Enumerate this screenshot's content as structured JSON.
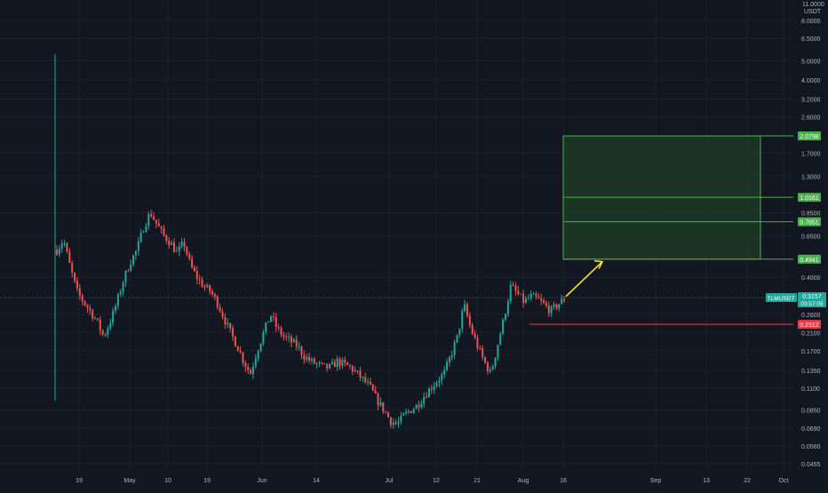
{
  "theme": {
    "background": "#131722",
    "grid": "#1e2230",
    "axis_text": "#b2b5be",
    "bull": "#26a69a",
    "bear": "#ef5350",
    "zone_fill": "#1f3a26",
    "zone_line": "#4caf50",
    "arrow": "#ffeb3b",
    "last_price_tag": "#26a69a",
    "stop_tag": "#f23645",
    "target_tag": "#4caf50"
  },
  "chart_data": {
    "type": "candlestick",
    "symbol": "TLMUSDT",
    "y_scale": "log",
    "ylabel": "USDT",
    "y_top_label": "11.0000",
    "y_tick_labels": [
      "8.0000",
      "6.5000",
      "5.0000",
      "4.0000",
      "3.2000",
      "2.6000",
      "1.7000",
      "1.3000",
      "0.8500",
      "0.6500",
      "0.4000",
      "0.2600",
      "0.2100",
      "0.1700",
      "0.1350",
      "0.1100",
      "0.0850",
      "0.0690",
      "0.0560",
      "0.0455"
    ],
    "x_tick_labels": [
      "19",
      "May",
      "10",
      "19",
      "Jun",
      "14",
      "Jul",
      "12",
      "21",
      "Aug",
      "16",
      "Sep",
      "13",
      "22",
      "Oct"
    ],
    "price_levels": [
      {
        "label": "2.0798",
        "value": 2.0798,
        "kind": "target"
      },
      {
        "label": "1.0161",
        "value": 1.0161,
        "kind": "target"
      },
      {
        "label": "0.7651",
        "value": 0.7651,
        "kind": "target"
      },
      {
        "label": "0.4941",
        "value": 0.4941,
        "kind": "target"
      },
      {
        "label": "0.2312",
        "value": 0.2312,
        "kind": "stop"
      }
    ],
    "last_price": {
      "label": "0.3157",
      "value": 0.3157,
      "countdown": "03:57:05"
    },
    "target_zone": {
      "bottom": 0.4941,
      "top": 2.0798
    },
    "arrow": {
      "from": 0.32,
      "to": 0.48
    },
    "first_candle_range": [
      0.095,
      5.4
    ],
    "price_path": [
      0.55,
      0.62,
      0.45,
      0.34,
      0.3,
      0.27,
      0.24,
      0.2,
      0.24,
      0.3,
      0.39,
      0.48,
      0.55,
      0.72,
      0.85,
      0.74,
      0.65,
      0.6,
      0.53,
      0.6,
      0.46,
      0.4,
      0.36,
      0.34,
      0.3,
      0.25,
      0.21,
      0.18,
      0.15,
      0.13,
      0.17,
      0.21,
      0.26,
      0.22,
      0.2,
      0.19,
      0.18,
      0.16,
      0.15,
      0.145,
      0.14,
      0.14,
      0.15,
      0.145,
      0.14,
      0.13,
      0.12,
      0.11,
      0.095,
      0.085,
      0.075,
      0.072,
      0.08,
      0.085,
      0.09,
      0.1,
      0.11,
      0.12,
      0.13,
      0.16,
      0.2,
      0.29,
      0.22,
      0.18,
      0.15,
      0.13,
      0.18,
      0.25,
      0.36,
      0.33,
      0.3,
      0.32,
      0.31,
      0.29,
      0.27,
      0.29,
      0.31
    ]
  },
  "tags": {
    "symbol_tag": "TLMUSDT",
    "price_tag": "0.3157",
    "countdown_tag": "03:57:05",
    "stop_tag": "0.2312",
    "t1": "2.0798",
    "t2": "1.0161",
    "t3": "0.7651",
    "t4": "0.4941"
  }
}
